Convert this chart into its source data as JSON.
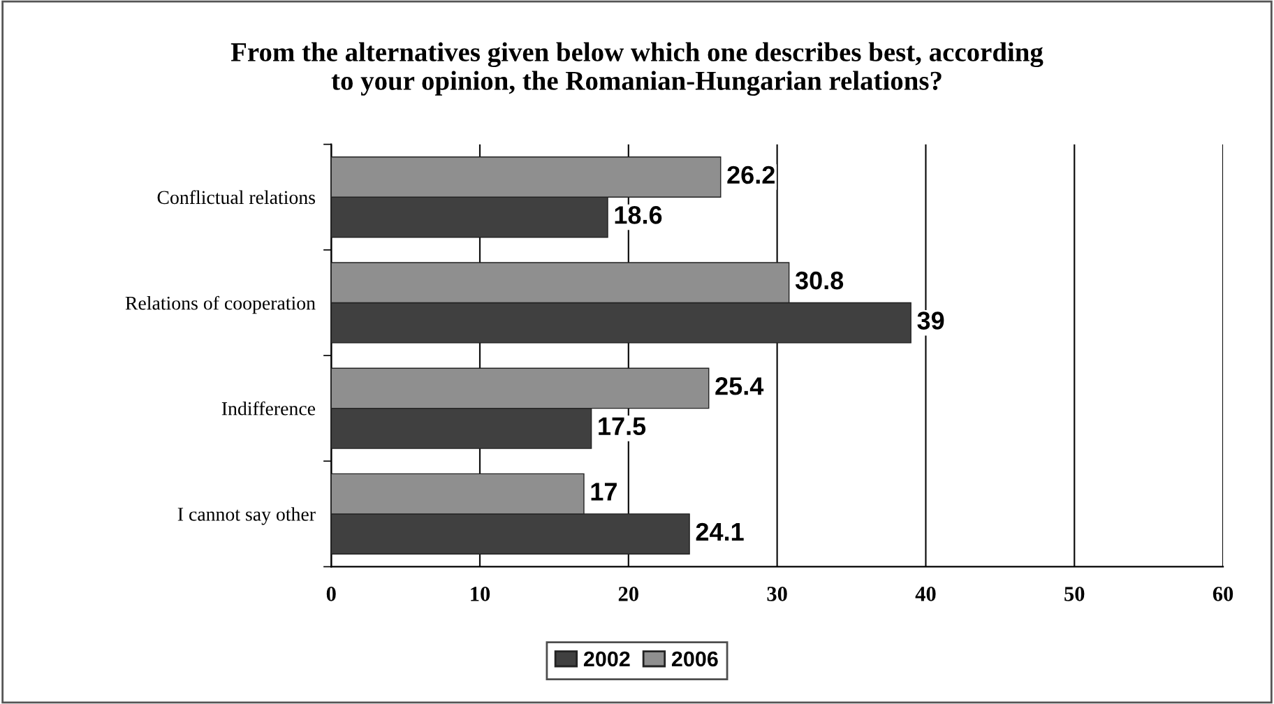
{
  "chart_data": {
    "type": "bar",
    "orientation": "horizontal",
    "title": "From the alternatives given below which one describes best, according\nto your opinion, the Romanian-Hungarian relations?",
    "categories": [
      "Conflictual relations",
      "Relations of cooperation",
      "Indifference",
      "I cannot say other"
    ],
    "series": [
      {
        "name": "2002",
        "color": "#404040",
        "values": [
          18.6,
          39,
          17.5,
          24.1
        ]
      },
      {
        "name": "2006",
        "color": "#8f8f8f",
        "values": [
          26.2,
          30.8,
          25.4,
          17
        ]
      }
    ],
    "xlim": [
      0,
      60
    ],
    "xticks": [
      0,
      10,
      20,
      30,
      40,
      50,
      60
    ],
    "grid": "x",
    "legend": "bottom",
    "data_labels": true
  }
}
